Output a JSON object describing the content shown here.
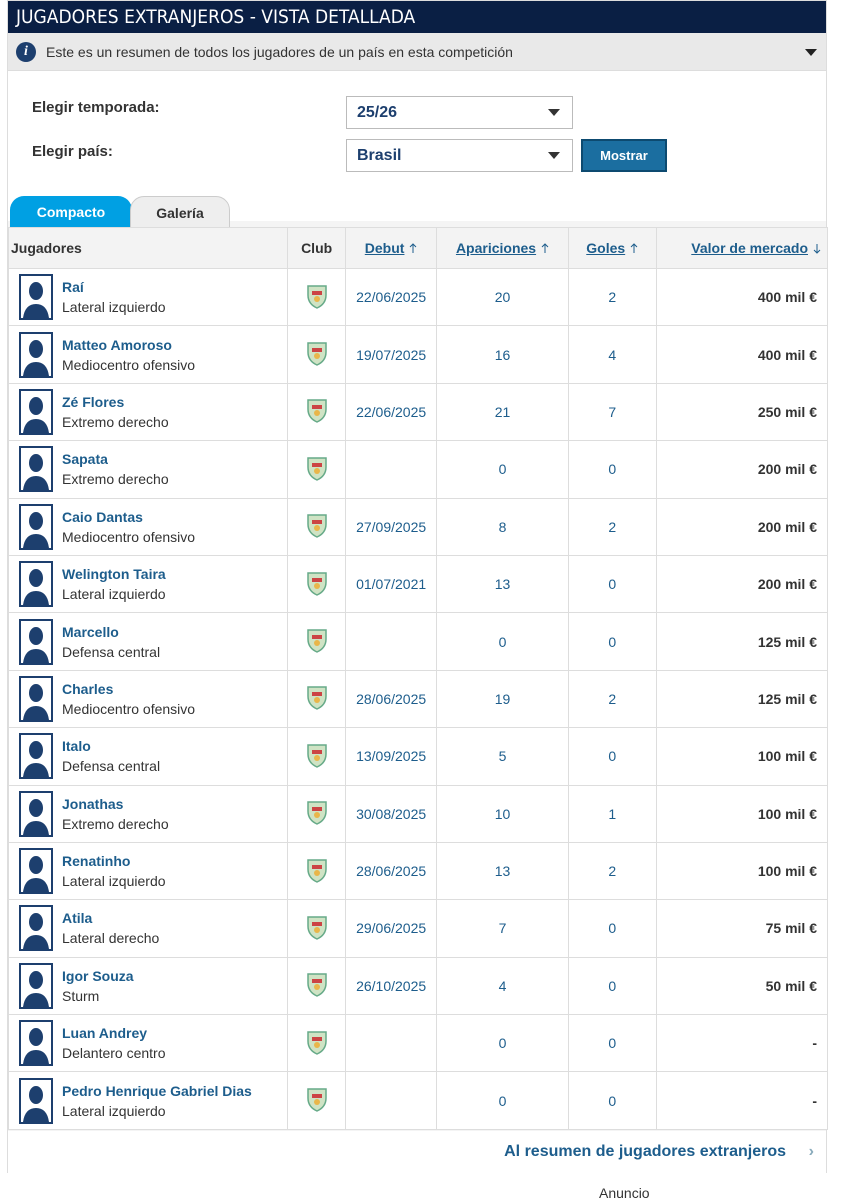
{
  "header": {
    "title": "JUGADORES EXTRANJEROS - VISTA DETALLADA",
    "info": "Este es un resumen de todos los jugadores de un país en esta competición"
  },
  "form": {
    "season_label": "Elegir temporada:",
    "season": "25/26",
    "country_label": "Elegir país:",
    "country": "Brasil",
    "button": "Mostrar"
  },
  "tabs": [
    "Compacto",
    "Galería"
  ],
  "table": {
    "columns": [
      "Jugadores",
      "Club",
      "Debut",
      "Apariciones",
      "Goles",
      "Valor de mercado"
    ],
    "rows": [
      [
        "Raí",
        "Lateral izquierdo",
        "22/06/2025",
        20,
        2,
        "400 mil €"
      ],
      [
        "Matteo Amoroso",
        "Mediocentro ofensivo",
        "19/07/2025",
        16,
        4,
        "400 mil €"
      ],
      [
        "Zé Flores",
        "Extremo derecho",
        "22/06/2025",
        21,
        7,
        "250 mil €"
      ],
      [
        "Sapata",
        "Extremo derecho",
        null,
        0,
        0,
        "200 mil €"
      ],
      [
        "Caio Dantas",
        "Mediocentro ofensivo",
        "27/09/2025",
        8,
        2,
        "200 mil €"
      ],
      [
        "Welington Taira",
        "Lateral izquierdo",
        "01/07/2021",
        13,
        0,
        "200 mil €"
      ],
      [
        "Marcello",
        "Defensa central",
        null,
        0,
        0,
        "125 mil €"
      ],
      [
        "Charles",
        "Mediocentro ofensivo",
        "28/06/2025",
        19,
        2,
        "125 mil €"
      ],
      [
        "Italo",
        "Defensa central",
        "13/09/2025",
        5,
        0,
        "100 mil €"
      ],
      [
        "Jonathas",
        "Extremo derecho",
        "30/08/2025",
        10,
        1,
        "100 mil €"
      ],
      [
        "Renatinho",
        "Lateral izquierdo",
        "28/06/2025",
        13,
        2,
        "100 mil €"
      ],
      [
        "Atila",
        "Lateral derecho",
        "29/06/2025",
        7,
        0,
        "75 mil €"
      ],
      [
        "Igor Souza",
        "Sturm",
        "26/10/2025",
        4,
        0,
        "50 mil €"
      ],
      [
        "Luan Andrey",
        "Delantero centro",
        null,
        0,
        0,
        "-"
      ],
      [
        "Pedro Henrique Gabriel Dias",
        "Lateral izquierdo",
        null,
        0,
        0,
        "-"
      ]
    ]
  },
  "footer": {
    "link": "Al resumen de jugadores extranjeros",
    "ad": "Anuncio"
  }
}
